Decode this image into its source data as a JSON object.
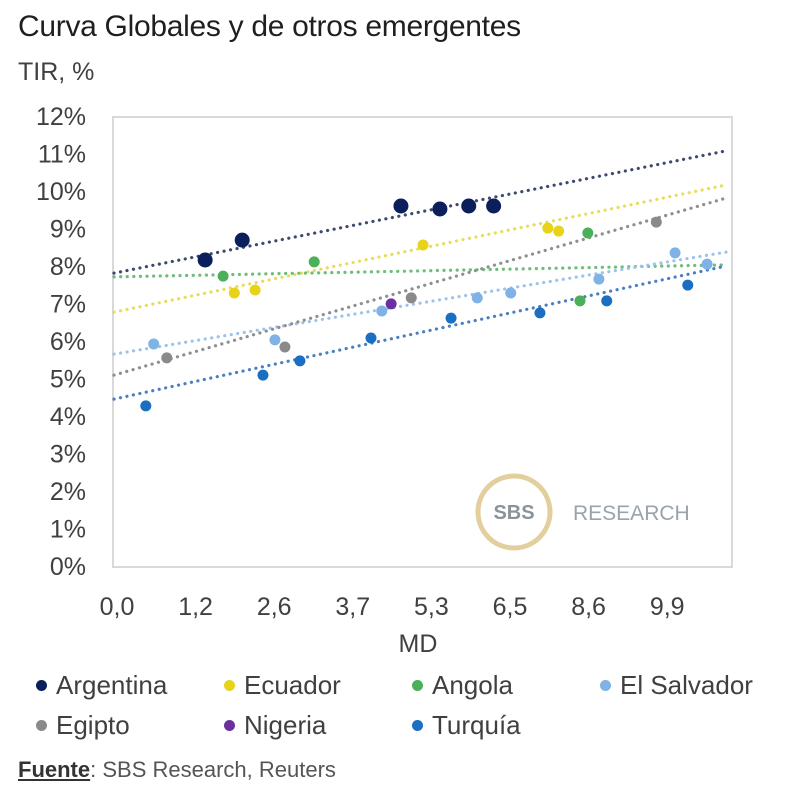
{
  "chart_data": {
    "type": "scatter",
    "title": "Curva Globales y de otros emergentes",
    "subtitle": "TIR, %",
    "xlabel": "MD",
    "ylabel": "TIR, %",
    "x_tick_labels": [
      "0,0",
      "1,2",
      "2,6",
      "3,7",
      "5,3",
      "6,5",
      "8,6",
      "9,9"
    ],
    "x_tick_values": [
      0.0,
      1.2,
      2.6,
      3.7,
      5.3,
      6.5,
      8.6,
      9.9
    ],
    "xlim": [
      0.0,
      10.9
    ],
    "y_tick_labels": [
      "0%",
      "1%",
      "2%",
      "3%",
      "4%",
      "5%",
      "6%",
      "7%",
      "8%",
      "9%",
      "10%",
      "11%",
      "12%"
    ],
    "ylim": [
      0,
      12
    ],
    "grid": false,
    "legend_position": "bottom",
    "trendline_style": "dotted linear",
    "series": [
      {
        "name": "Argentina",
        "color": "#0b1f5c",
        "marker_size": "large",
        "points": [
          [
            1.37,
            8.16
          ],
          [
            2.03,
            8.69
          ],
          [
            4.68,
            9.6
          ],
          [
            5.43,
            9.52
          ],
          [
            5.87,
            9.6
          ],
          [
            6.25,
            9.6
          ]
        ],
        "trendline": [
          [
            0.0,
            7.81
          ],
          [
            10.9,
            11.07
          ]
        ],
        "trend_color": "#3d4a6e"
      },
      {
        "name": "Ecuador",
        "color": "#e8d21a",
        "marker_size": "medium",
        "points": [
          [
            1.89,
            7.28
          ],
          [
            2.26,
            7.36
          ],
          [
            5.13,
            8.56
          ],
          [
            7.51,
            9.01
          ],
          [
            7.8,
            8.93
          ]
        ],
        "trendline": [
          [
            0.0,
            6.77
          ],
          [
            10.9,
            10.16
          ]
        ],
        "trend_color": "#e8dc5a"
      },
      {
        "name": "Angola",
        "color": "#4caf5a",
        "marker_size": "medium",
        "points": [
          [
            1.69,
            7.73
          ],
          [
            3.16,
            8.11
          ],
          [
            8.58,
            8.88
          ],
          [
            8.37,
            7.07
          ]
        ],
        "trendline": [
          [
            0.0,
            7.71
          ],
          [
            10.9,
            8.03
          ]
        ],
        "trend_color": "#6fbd7a"
      },
      {
        "name": "El Salvador",
        "color": "#7fb2e5",
        "marker_size": "medium",
        "points": [
          [
            0.56,
            5.92
          ],
          [
            2.61,
            6.03
          ],
          [
            4.29,
            6.8
          ],
          [
            6.0,
            7.15
          ],
          [
            6.52,
            7.28
          ],
          [
            8.77,
            7.65
          ],
          [
            10.03,
            8.35
          ],
          [
            10.56,
            8.05
          ]
        ],
        "trendline": [
          [
            0.0,
            5.65
          ],
          [
            10.9,
            8.37
          ]
        ],
        "trend_color": "#9cc3ec"
      },
      {
        "name": "Egipto",
        "color": "#8a8a8a",
        "marker_size": "medium",
        "points": [
          [
            0.76,
            5.55
          ],
          [
            2.75,
            5.84
          ],
          [
            4.89,
            7.15
          ],
          [
            9.72,
            9.17
          ]
        ],
        "trendline": [
          [
            0.0,
            5.09
          ],
          [
            10.9,
            9.81
          ]
        ],
        "trend_color": "#8f8f8f"
      },
      {
        "name": "Nigeria",
        "color": "#6b2fa0",
        "marker_size": "medium",
        "points": [
          [
            4.48,
            6.99
          ]
        ],
        "trendline": null,
        "trend_color": null
      },
      {
        "name": "Turquía",
        "color": "#1a6fc2",
        "marker_size": "medium",
        "points": [
          [
            0.44,
            4.27
          ],
          [
            2.4,
            5.09
          ],
          [
            2.96,
            5.47
          ],
          [
            4.07,
            6.08
          ],
          [
            5.6,
            6.61
          ],
          [
            7.3,
            6.75
          ],
          [
            8.9,
            7.07
          ],
          [
            10.24,
            7.49
          ]
        ],
        "trendline": [
          [
            0.0,
            4.45
          ],
          [
            10.9,
            8.0
          ]
        ],
        "trend_color": "#4a7fbf"
      }
    ]
  },
  "watermark": {
    "logo_text": "SBS",
    "text": "RESEARCH"
  },
  "legend": {
    "items": [
      {
        "label": "Argentina",
        "color": "#0b1f5c"
      },
      {
        "label": "Ecuador",
        "color": "#e8d21a"
      },
      {
        "label": "Angola",
        "color": "#4caf5a"
      },
      {
        "label": "El Salvador",
        "color": "#7fb2e5"
      },
      {
        "label": "Egipto",
        "color": "#8a8a8a"
      },
      {
        "label": "Nigeria",
        "color": "#6b2fa0"
      },
      {
        "label": "Turquía",
        "color": "#1a6fc2"
      }
    ]
  },
  "source": {
    "key": "Fuente",
    "text": ": SBS Research, Reuters"
  }
}
